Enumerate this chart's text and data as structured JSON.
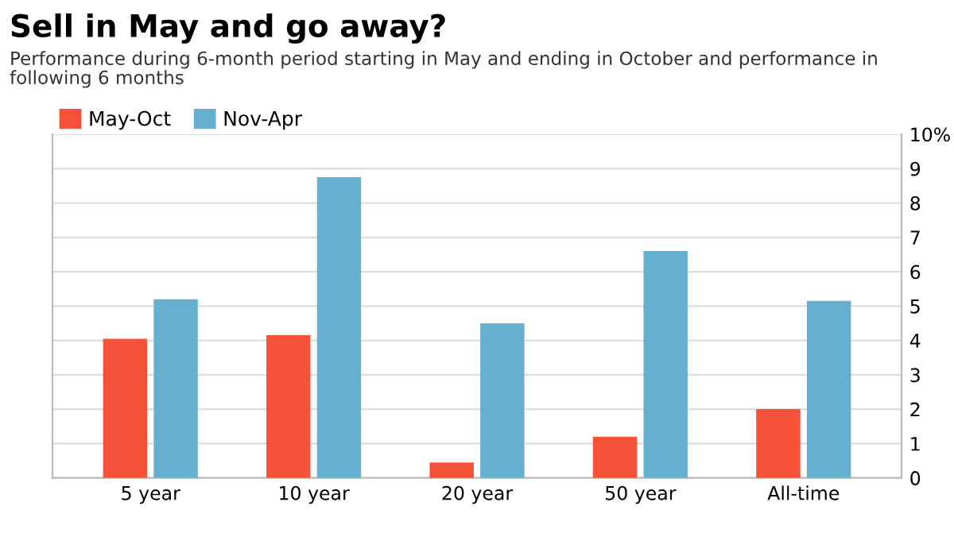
{
  "chart_data": {
    "type": "bar",
    "title": "Sell in May and go away?",
    "subtitle": "Performance during 6-month period starting in May and ending in October and performance in following 6 months",
    "categories": [
      "5 year",
      "10 year",
      "20 year",
      "50 year",
      "All-time"
    ],
    "series": [
      {
        "name": "May-Oct",
        "color": "#f6523a",
        "values": [
          4.05,
          4.15,
          0.45,
          1.2,
          2.0
        ]
      },
      {
        "name": "Nov-Apr",
        "color": "#66b0cf",
        "values": [
          5.2,
          8.75,
          4.5,
          6.6,
          5.15
        ]
      }
    ],
    "ylim": [
      0,
      10
    ],
    "yticks": [
      0,
      1,
      2,
      3,
      4,
      5,
      6,
      7,
      8,
      9,
      {
        "value": 10,
        "label": "10%"
      }
    ],
    "grid": "y",
    "legend": "top left"
  }
}
